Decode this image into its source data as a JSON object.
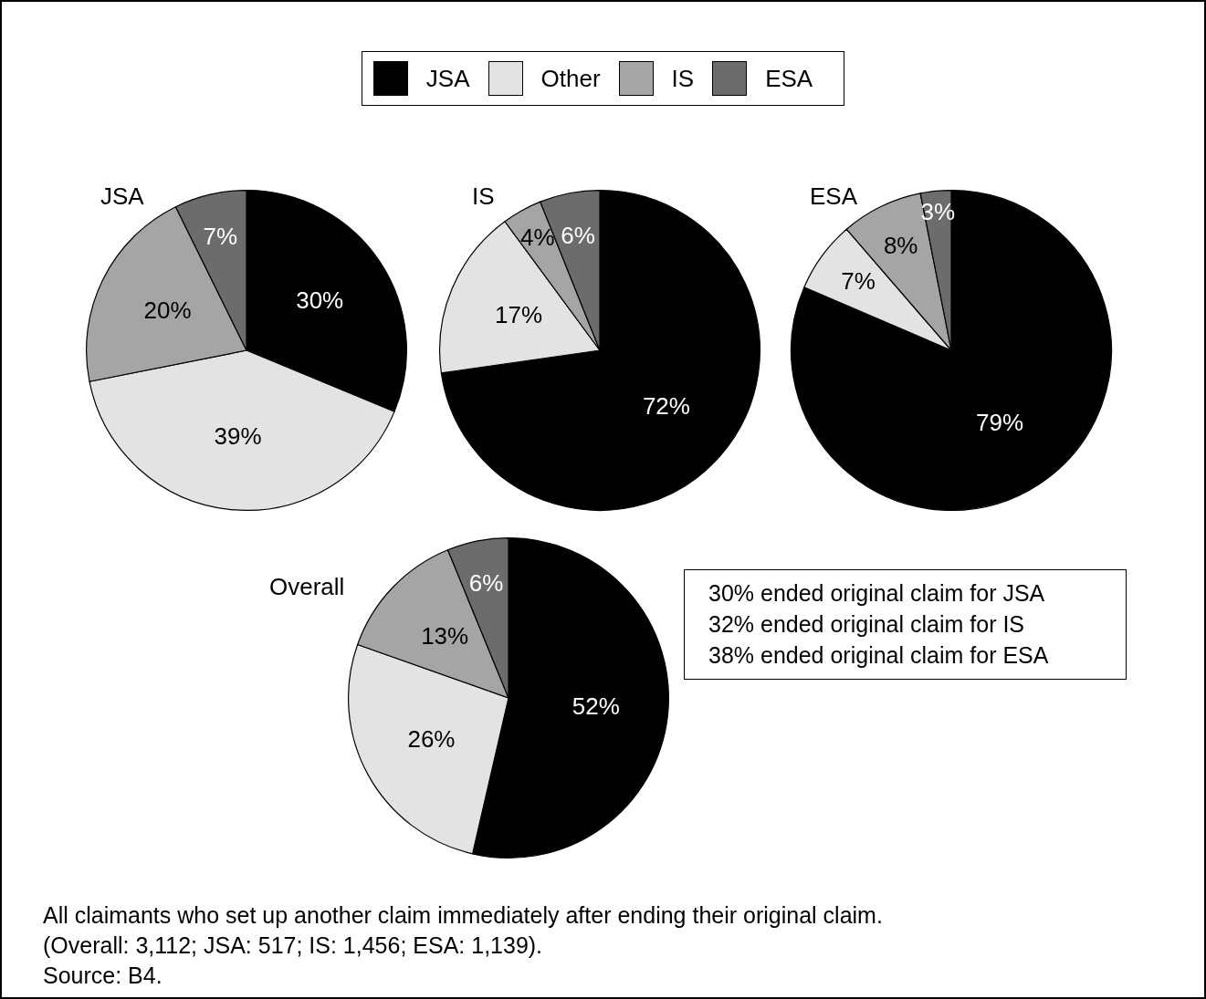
{
  "chart_data": [
    {
      "type": "pie",
      "title": "JSA",
      "categories": [
        "JSA",
        "Other",
        "IS",
        "ESA"
      ],
      "values": [
        30,
        39,
        20,
        7
      ],
      "value_labels": [
        "30%",
        "39%",
        "20%",
        "7%"
      ],
      "colors": [
        "#000000",
        "#e3e3e3",
        "#a5a5a5",
        "#6c6c6c"
      ],
      "legend": "top"
    },
    {
      "type": "pie",
      "title": "IS",
      "categories": [
        null,
        null,
        null,
        null
      ],
      "values": [
        72,
        17,
        4,
        6
      ],
      "value_labels": [
        "72%",
        "17%",
        "4%",
        "6%"
      ],
      "colors": [
        "#000000",
        "#e3e3e3",
        "#a5a5a5",
        "#6c6c6c"
      ]
    },
    {
      "type": "pie",
      "title": "ESA",
      "categories": [
        null,
        null,
        null,
        null
      ],
      "values": [
        79,
        7,
        8,
        3
      ],
      "value_labels": [
        "79%",
        "7%",
        "8%",
        "3%"
      ],
      "colors": [
        "#000000",
        "#e3e3e3",
        "#a5a5a5",
        "#6c6c6c"
      ]
    },
    {
      "type": "pie",
      "title": "Overall",
      "categories": [
        null,
        null,
        null,
        null
      ],
      "values": [
        52,
        26,
        13,
        6
      ],
      "value_labels": [
        "52%",
        "26%",
        "13%",
        "6%"
      ],
      "colors": [
        "#000000",
        "#e3e3e3",
        "#a5a5a5",
        "#6c6c6c"
      ],
      "annotations": [
        "30% ended original claim for JSA\n32% ended original claim for IS\n38% ended original claim for ESA",
        "All claimants who set up another claim immediately after ending their original claim.\n(Overall: 3,112; JSA: 517; IS: 1,456; ESA: 1,139).\nSource: B4."
      ]
    }
  ]
}
